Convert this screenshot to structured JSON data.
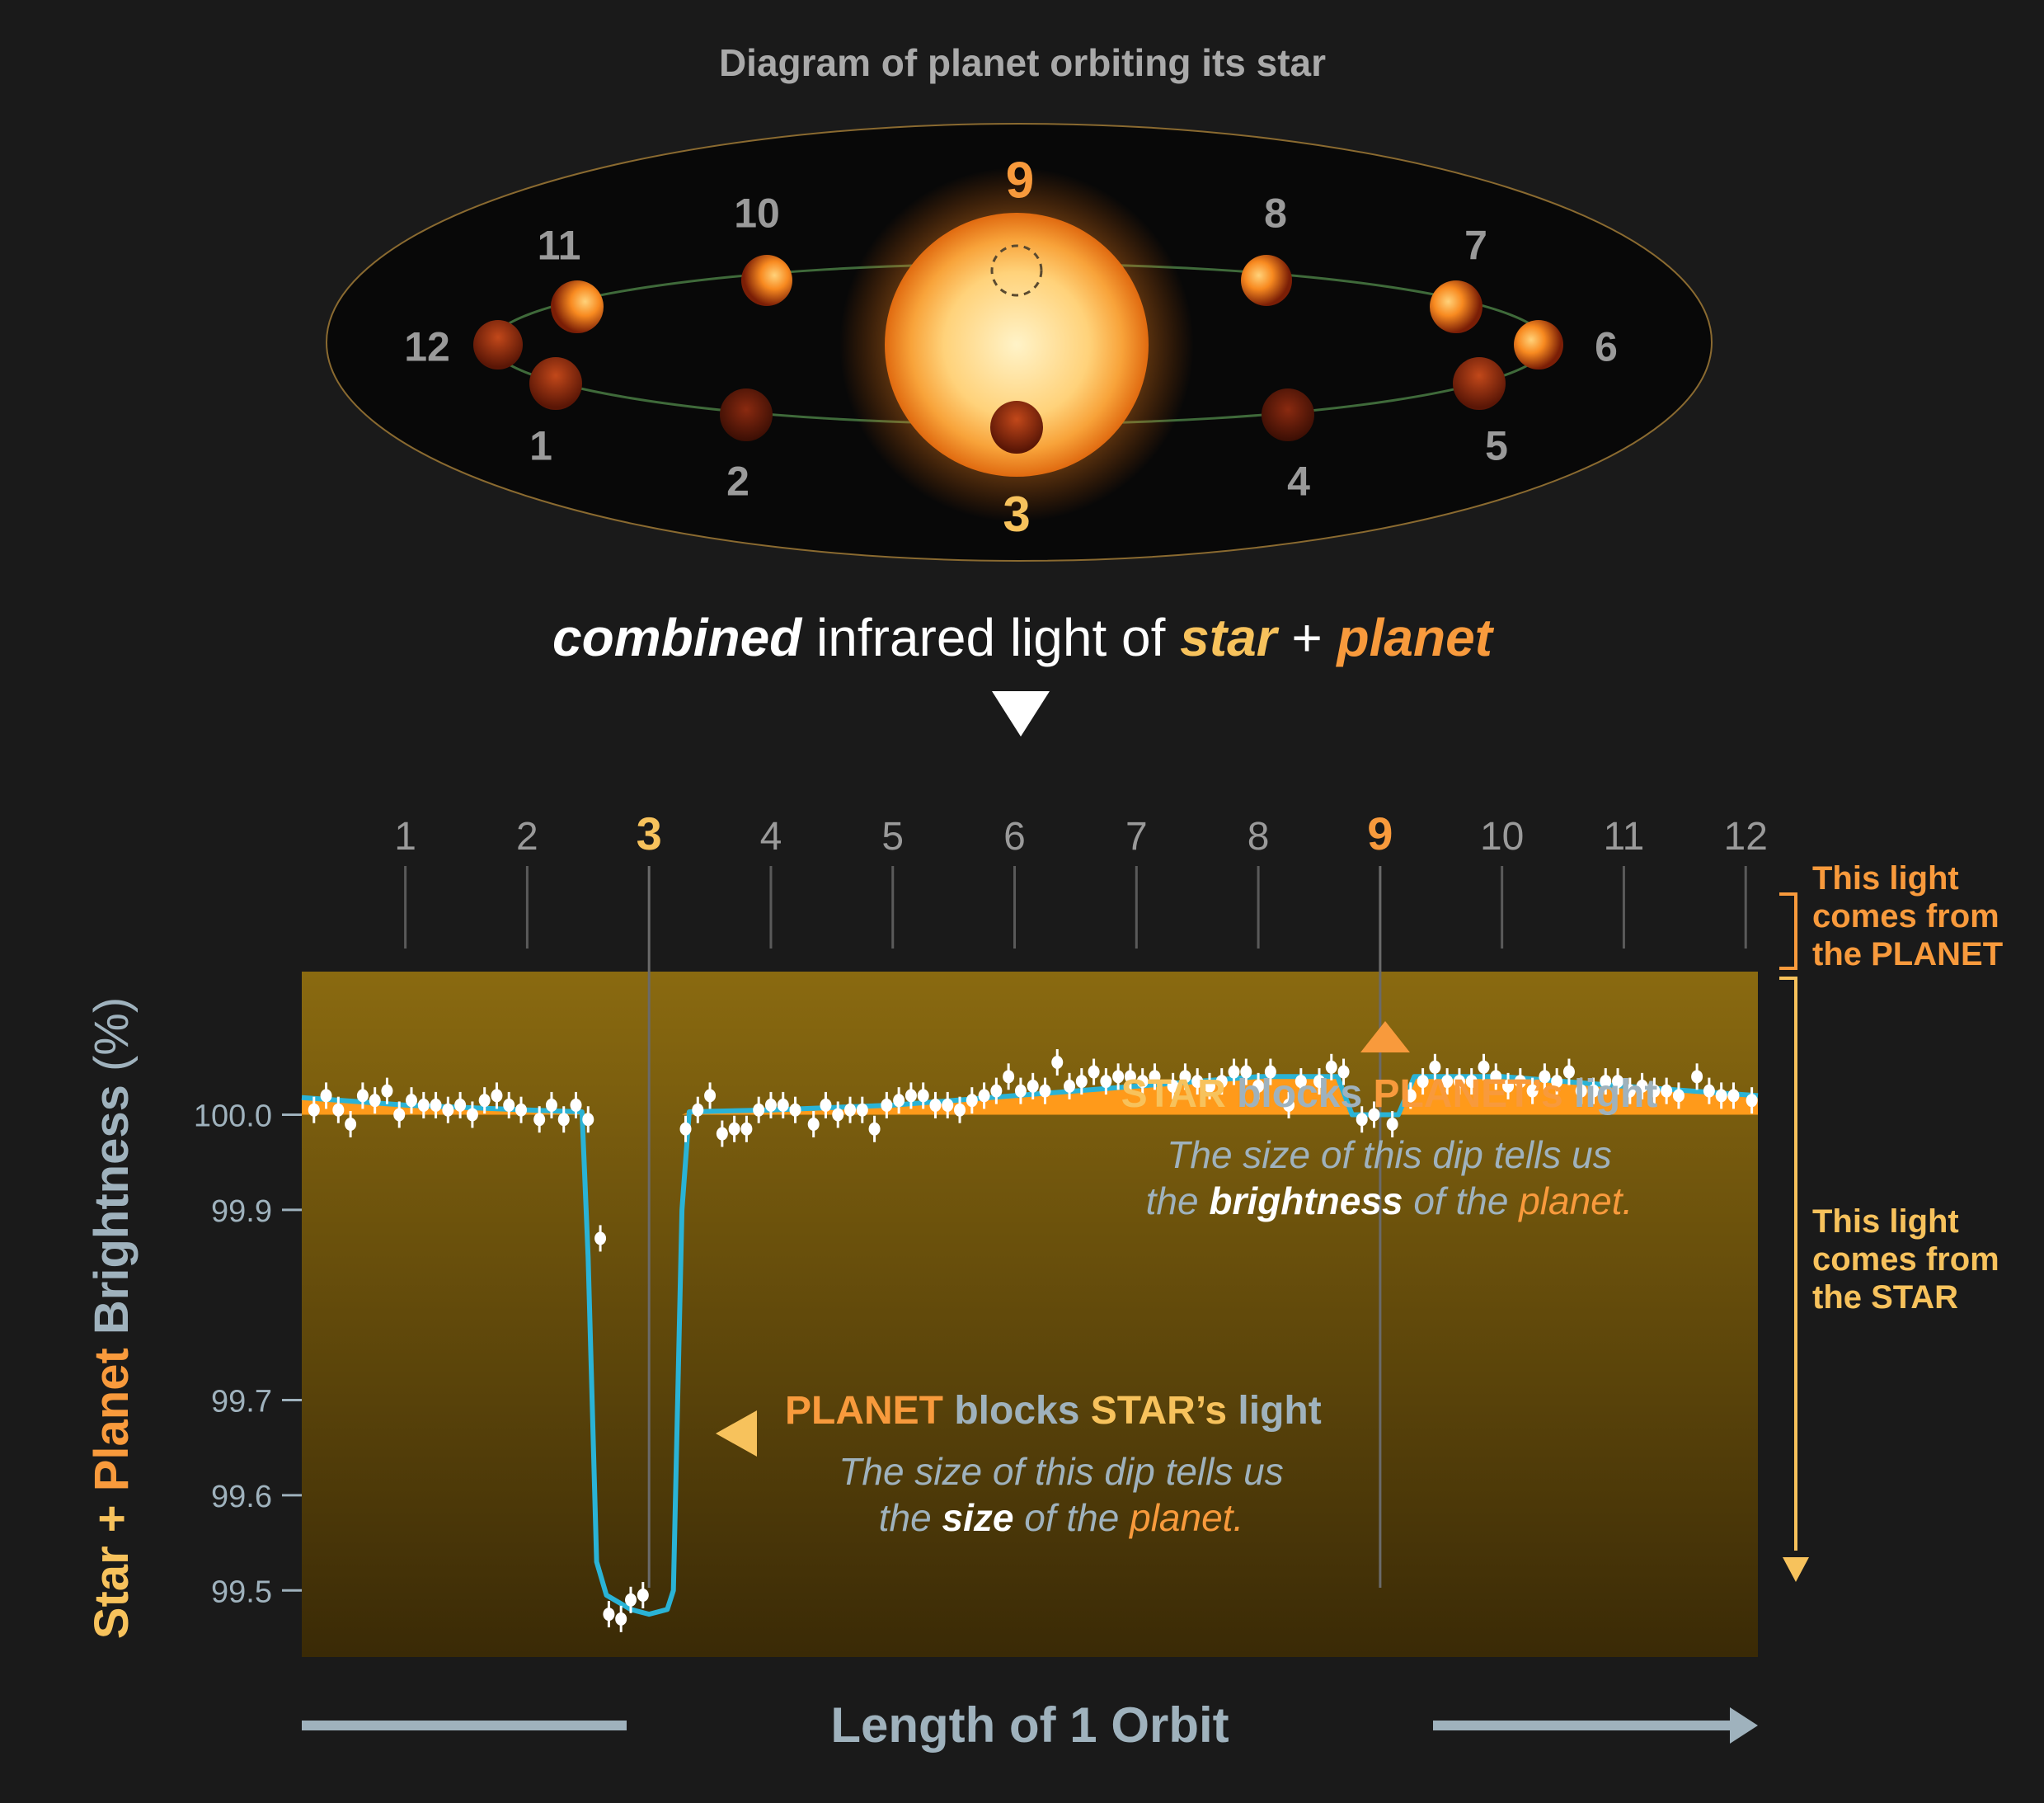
{
  "diagram": {
    "title": "Diagram of planet orbiting its star",
    "positions": [
      {
        "label": "1",
        "highlight": false
      },
      {
        "label": "2",
        "highlight": false
      },
      {
        "label": "3",
        "highlight": true
      },
      {
        "label": "4",
        "highlight": false
      },
      {
        "label": "5",
        "highlight": false
      },
      {
        "label": "6",
        "highlight": false
      },
      {
        "label": "7",
        "highlight": false
      },
      {
        "label": "8",
        "highlight": false
      },
      {
        "label": "9",
        "highlight": true
      },
      {
        "label": "10",
        "highlight": false
      },
      {
        "label": "11",
        "highlight": false
      },
      {
        "label": "12",
        "highlight": false
      }
    ]
  },
  "caption": {
    "part1": "combined",
    "part2": " infrared light of ",
    "part3": "star",
    "part4": " + ",
    "part5": "planet"
  },
  "annotations": {
    "secondary_eclipse": {
      "title_a": "STAR",
      "title_b": " blocks ",
      "title_c": "PLANET’s",
      "title_d": " light",
      "line1": "The size of this dip tells us",
      "line2_a": "the ",
      "line2_b": "brightness",
      "line2_c": " of the ",
      "line2_d": "planet."
    },
    "transit": {
      "title_a": "PLANET",
      "title_b": " blocks ",
      "title_c": "STAR’s",
      "title_d": " light",
      "line1": "The size of this dip tells us",
      "line2_a": "the ",
      "line2_b": "size",
      "line2_c": " of the ",
      "line2_d": "planet."
    },
    "planet_light": {
      "line1": "This light",
      "line2": "comes from",
      "line3_a": "the ",
      "line3_b": "PLANET"
    },
    "star_light": {
      "line1": "This light",
      "line2": "comes from",
      "line3_a": "the ",
      "line3_b": "STAR"
    }
  },
  "axis": {
    "ylabel_a": "Star + ",
    "ylabel_b": "Planet",
    "ylabel_c": " Brightness ",
    "ylabel_d": "(%)",
    "xlabel": "Length of 1 Orbit"
  },
  "colors": {
    "star_yellow": "#f7c25c",
    "planet_orange": "#f89a3c",
    "model_line": "#2ab3d6",
    "axis_text": "#9fb2bd",
    "plot_top": "#8a6a10",
    "plot_bottom": "#3a2a06",
    "planet_fill": "#ff9a1a"
  },
  "chart_data": {
    "type": "scatter",
    "xlabel": "Length of 1 Orbit",
    "ylabel": "Star + Planet Brightness (%)",
    "ylim": [
      99.43,
      100.27
    ],
    "xlim": [
      0.15,
      12.1
    ],
    "yticks": [
      "100.0",
      "99.9",
      "99.7",
      "99.6",
      "99.5"
    ],
    "ytick_values": [
      100.0,
      99.9,
      99.7,
      99.6,
      99.5
    ],
    "top_ticks": [
      "1",
      "2",
      "3",
      "4",
      "5",
      "6",
      "7",
      "8",
      "9",
      "10",
      "11",
      "12"
    ],
    "top_tick_values": [
      1,
      2,
      3,
      4,
      5,
      6,
      7,
      8,
      9,
      10,
      11,
      12
    ],
    "top_tick_highlight": [
      3,
      9
    ],
    "grid": false,
    "legend": "none",
    "series": [
      {
        "kind": "model",
        "x": [
          0.15,
          1.0,
          2.0,
          2.45,
          2.5,
          2.57,
          2.65,
          2.85,
          3.0,
          3.15,
          3.2,
          3.27,
          3.33,
          4.0,
          5.0,
          6.0,
          7.0,
          8.0,
          8.65,
          8.77,
          9.15,
          9.28,
          9.37,
          10.0,
          11.0,
          12.1
        ],
        "y": [
          100.018,
          100.01,
          100.005,
          100.003,
          99.85,
          99.53,
          99.495,
          99.48,
          99.475,
          99.48,
          99.5,
          99.9,
          100.003,
          100.005,
          100.01,
          100.02,
          100.03,
          100.04,
          100.04,
          100.0,
          100.0,
          100.04,
          100.04,
          100.04,
          100.03,
          100.02
        ]
      },
      {
        "kind": "measurements",
        "points": [
          [
            0.25,
            100.005
          ],
          [
            0.35,
            100.02
          ],
          [
            0.45,
            100.005
          ],
          [
            0.55,
            99.99
          ],
          [
            0.65,
            100.02
          ],
          [
            0.75,
            100.015
          ],
          [
            0.85,
            100.025
          ],
          [
            0.95,
            100.0
          ],
          [
            1.05,
            100.015
          ],
          [
            1.15,
            100.01
          ],
          [
            1.25,
            100.01
          ],
          [
            1.35,
            100.005
          ],
          [
            1.45,
            100.01
          ],
          [
            1.55,
            100.0
          ],
          [
            1.65,
            100.015
          ],
          [
            1.75,
            100.02
          ],
          [
            1.85,
            100.01
          ],
          [
            1.95,
            100.005
          ],
          [
            2.1,
            99.995
          ],
          [
            2.2,
            100.01
          ],
          [
            2.3,
            99.995
          ],
          [
            2.4,
            100.01
          ],
          [
            2.5,
            99.995
          ],
          [
            2.6,
            99.87
          ],
          [
            2.67,
            99.475
          ],
          [
            2.77,
            99.47
          ],
          [
            2.85,
            99.49
          ],
          [
            2.95,
            99.495
          ],
          [
            3.3,
            99.985
          ],
          [
            3.4,
            100.005
          ],
          [
            3.5,
            100.02
          ],
          [
            3.6,
            99.98
          ],
          [
            3.7,
            99.985
          ],
          [
            3.8,
            99.985
          ],
          [
            3.9,
            100.005
          ],
          [
            4.0,
            100.01
          ],
          [
            4.1,
            100.01
          ],
          [
            4.2,
            100.005
          ],
          [
            4.35,
            99.99
          ],
          [
            4.45,
            100.01
          ],
          [
            4.55,
            100.0
          ],
          [
            4.65,
            100.005
          ],
          [
            4.75,
            100.005
          ],
          [
            4.85,
            99.985
          ],
          [
            4.95,
            100.01
          ],
          [
            5.05,
            100.015
          ],
          [
            5.15,
            100.02
          ],
          [
            5.25,
            100.02
          ],
          [
            5.35,
            100.01
          ],
          [
            5.45,
            100.01
          ],
          [
            5.55,
            100.005
          ],
          [
            5.65,
            100.015
          ],
          [
            5.75,
            100.02
          ],
          [
            5.85,
            100.025
          ],
          [
            5.95,
            100.04
          ],
          [
            6.05,
            100.025
          ],
          [
            6.15,
            100.03
          ],
          [
            6.25,
            100.025
          ],
          [
            6.35,
            100.055
          ],
          [
            6.45,
            100.03
          ],
          [
            6.55,
            100.035
          ],
          [
            6.65,
            100.045
          ],
          [
            6.75,
            100.035
          ],
          [
            6.85,
            100.04
          ],
          [
            6.95,
            100.04
          ],
          [
            7.05,
            100.035
          ],
          [
            7.15,
            100.04
          ],
          [
            7.3,
            100.03
          ],
          [
            7.4,
            100.04
          ],
          [
            7.5,
            100.035
          ],
          [
            7.6,
            100.03
          ],
          [
            7.7,
            100.035
          ],
          [
            7.8,
            100.045
          ],
          [
            7.9,
            100.045
          ],
          [
            8.0,
            100.03
          ],
          [
            8.1,
            100.045
          ],
          [
            8.25,
            100.01
          ],
          [
            8.35,
            100.035
          ],
          [
            8.5,
            100.035
          ],
          [
            8.6,
            100.05
          ],
          [
            8.7,
            100.045
          ],
          [
            8.85,
            99.995
          ],
          [
            8.95,
            100.0
          ],
          [
            9.1,
            99.99
          ],
          [
            9.25,
            100.02
          ],
          [
            9.35,
            100.035
          ],
          [
            9.45,
            100.05
          ],
          [
            9.55,
            100.035
          ],
          [
            9.65,
            100.035
          ],
          [
            9.75,
            100.035
          ],
          [
            9.85,
            100.05
          ],
          [
            9.95,
            100.04
          ],
          [
            10.05,
            100.03
          ],
          [
            10.15,
            100.035
          ],
          [
            10.25,
            100.025
          ],
          [
            10.35,
            100.04
          ],
          [
            10.45,
            100.035
          ],
          [
            10.55,
            100.045
          ],
          [
            10.65,
            100.025
          ],
          [
            10.75,
            100.025
          ],
          [
            10.85,
            100.035
          ],
          [
            10.95,
            100.035
          ],
          [
            11.05,
            100.025
          ],
          [
            11.15,
            100.03
          ],
          [
            11.25,
            100.025
          ],
          [
            11.35,
            100.025
          ],
          [
            11.45,
            100.02
          ],
          [
            11.6,
            100.04
          ],
          [
            11.7,
            100.025
          ],
          [
            11.8,
            100.02
          ],
          [
            11.9,
            100.02
          ],
          [
            12.05,
            100.015
          ]
        ]
      }
    ]
  }
}
